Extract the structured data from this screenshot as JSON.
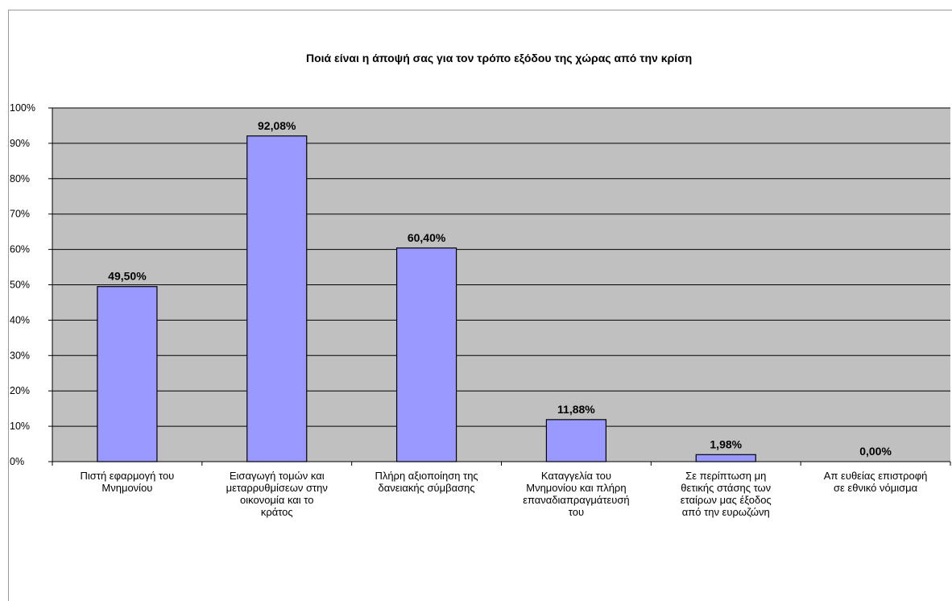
{
  "chart_data": {
    "type": "bar",
    "title": "Ποιά είναι η άποψή σας για τον τρόπο εξόδου της χώρας από την κρίση",
    "xlabel": "",
    "ylabel": "",
    "ylim": [
      0,
      100
    ],
    "y_ticks": [
      "0%",
      "10%",
      "20%",
      "30%",
      "40%",
      "50%",
      "60%",
      "70%",
      "80%",
      "90%",
      "100%"
    ],
    "grid": true,
    "legend": "none",
    "categories": [
      [
        "Πιστή εφαρμογή του",
        "Μνημονίου"
      ],
      [
        "Εισαγωγή τομών και",
        "μεταρρυθμίσεων στην",
        "οικονομία και το",
        "κράτος"
      ],
      [
        "Πλήρη αξιοποίηση της",
        "δανειακής σύμβασης"
      ],
      [
        "Καταγγελία του",
        "Μνημονίου και πλήρη",
        "επαναδιαπραγμάτευσή",
        "του"
      ],
      [
        "Σε περίπτωση μη",
        "θετικής στάσης των",
        "εταίρων μας έξοδος",
        "από την ευρωζώνη"
      ],
      [
        "Απ ευθείας επιστροφή",
        "σε εθνικό νόμισμα"
      ]
    ],
    "values": [
      49.5,
      92.08,
      60.4,
      11.88,
      1.98,
      0.0
    ],
    "value_labels": [
      "49,50%",
      "92,08%",
      "60,40%",
      "11,88%",
      "1,98%",
      "0,00%"
    ],
    "colors": {
      "bar_fill": "#9999ff",
      "bar_stroke": "#000000",
      "plot_background": "#c0c0c0",
      "grid": "#000000"
    }
  }
}
